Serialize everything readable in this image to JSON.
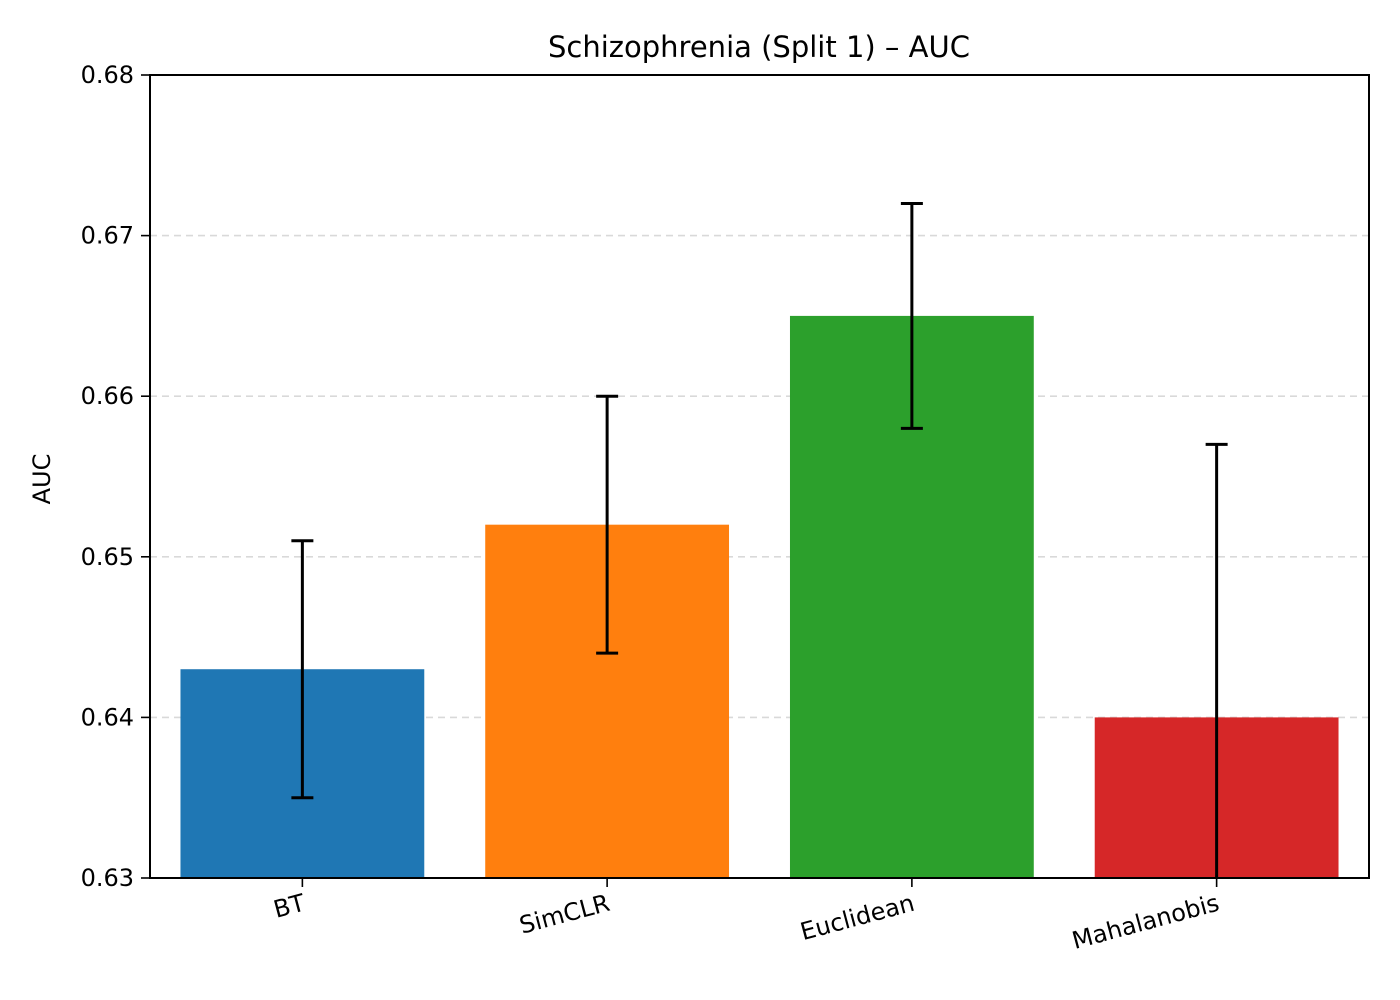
{
  "chart_data": {
    "type": "bar",
    "title": "Schizophrenia (Split 1) – AUC",
    "xlabel": "",
    "ylabel": "AUC",
    "ylim": [
      0.63,
      0.68
    ],
    "yticks": [
      0.63,
      0.64,
      0.65,
      0.66,
      0.67,
      0.68
    ],
    "ytick_labels": [
      "0.63",
      "0.64",
      "0.65",
      "0.66",
      "0.67",
      "0.68"
    ],
    "grid": "horizontal dashed",
    "categories": [
      "BT",
      "SimCLR",
      "Euclidean",
      "Mahalanobis"
    ],
    "values": [
      0.643,
      0.652,
      0.665,
      0.64
    ],
    "error_low": [
      0.635,
      0.644,
      0.658,
      0.623
    ],
    "error_high": [
      0.651,
      0.66,
      0.672,
      0.657
    ],
    "colors": [
      "#1f77b4",
      "#ff7f0e",
      "#2ca02c",
      "#d62728"
    ],
    "error_color": "#000000"
  }
}
